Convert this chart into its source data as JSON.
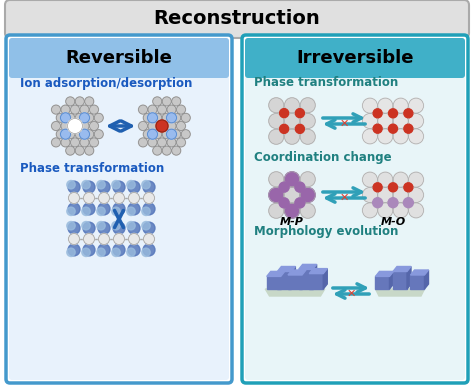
{
  "title": "Reconstruction",
  "title_bg_top": "#d0d0d0",
  "title_bg_bot": "#e8e8e8",
  "title_border": "#999999",
  "left_header": "Reversible",
  "right_header": "Irreversible",
  "left_header_bg_top": "#80b8e0",
  "left_header_bg_bot": "#c8dff5",
  "right_header_bg_top": "#40a0b8",
  "right_header_bg_bot": "#c0e0f0",
  "left_bg": "#ddeeff",
  "right_bg": "#ddeeff",
  "outer_border_left": "#3388cc",
  "outer_border_right": "#20a0c0",
  "left_label1": "Ion adsorption/desorption",
  "left_label2": "Phase transformation",
  "right_label1": "Phase transformation",
  "right_label2": "Coordination change",
  "right_label3": "Morphology evolution",
  "right_sublabel1": "M-P",
  "right_sublabel2": "M-O",
  "label_color_left": "#1a5abf",
  "label_color_right": "#208080",
  "header_text_color": "#000000",
  "arrow_color_blue": "#2060b0",
  "arrow_color_teal": "#20a0b0",
  "arrow_x_color": "#e04030",
  "fig_bg": "#ffffff",
  "gray_atom": "#c8c8c8",
  "red_atom": "#cc3322",
  "purple_atom": "#9966aa",
  "white_atom": "#e8e8e8",
  "blue_atom": "#88aadd",
  "crystal_blue": "#7788cc",
  "crystal_dark": "#5566aa",
  "crystal_side": "#4455aa",
  "teal_plate": "#b0c8b8"
}
